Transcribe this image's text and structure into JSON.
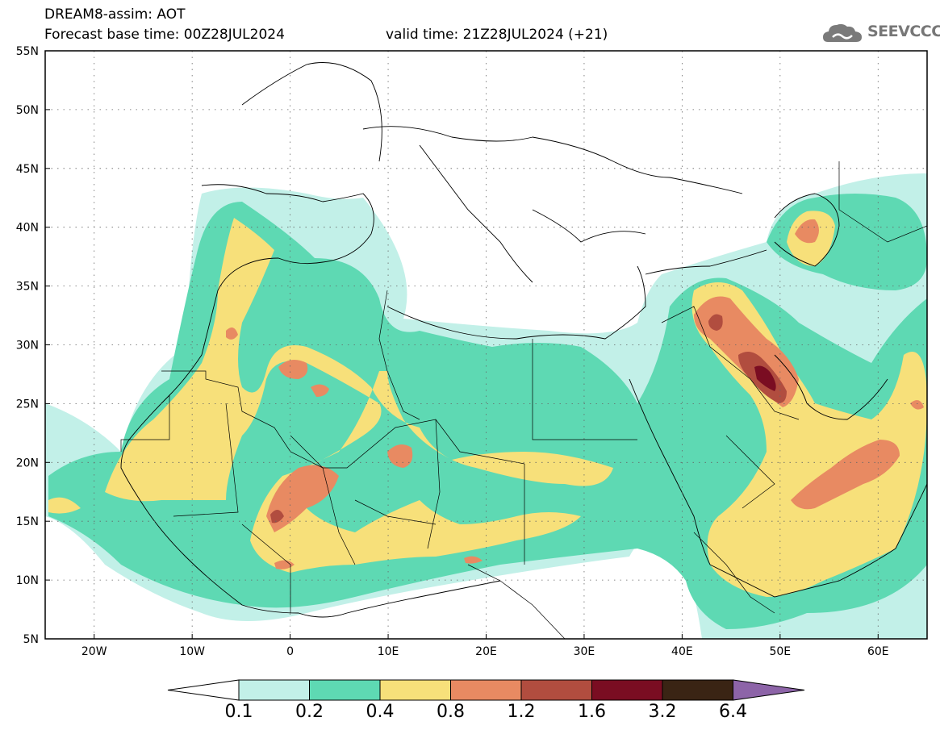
{
  "header": {
    "title_line1": "DREAM8-assim: AOT",
    "title_line2_left": "Forecast base time: 00Z28JUL2024",
    "title_line2_right": "valid time: 21Z28JUL2024 (+21)"
  },
  "logo": {
    "icon": "cloud-icon",
    "text": "SEEVCCC"
  },
  "map": {
    "lon_range": [
      -25,
      65
    ],
    "lat_range": [
      5,
      55
    ],
    "lat_ticks": [
      {
        "value": 55,
        "label": "55N"
      },
      {
        "value": 50,
        "label": "50N"
      },
      {
        "value": 45,
        "label": "45N"
      },
      {
        "value": 40,
        "label": "40N"
      },
      {
        "value": 35,
        "label": "35N"
      },
      {
        "value": 30,
        "label": "30N"
      },
      {
        "value": 25,
        "label": "25N"
      },
      {
        "value": 20,
        "label": "20N"
      },
      {
        "value": 15,
        "label": "15N"
      },
      {
        "value": 10,
        "label": "10N"
      },
      {
        "value": 5,
        "label": "5N"
      }
    ],
    "lon_ticks": [
      {
        "value": -20,
        "label": "20W"
      },
      {
        "value": -10,
        "label": "10W"
      },
      {
        "value": 0,
        "label": "0"
      },
      {
        "value": 10,
        "label": "10E"
      },
      {
        "value": 20,
        "label": "20E"
      },
      {
        "value": 30,
        "label": "30E"
      },
      {
        "value": 40,
        "label": "40E"
      },
      {
        "value": 50,
        "label": "50E"
      },
      {
        "value": 60,
        "label": "60E"
      }
    ],
    "grid": true,
    "colors": {
      "c01": "#c2f0e8",
      "c02": "#5ed9b3",
      "c04": "#f7e07a",
      "c08": "#e88a62",
      "c12": "#b14d3f",
      "c16": "#7a0d22",
      "c32": "#3a2414",
      "c64": "#8d64a8"
    }
  },
  "colorbar": {
    "labels": [
      "0.1",
      "0.2",
      "0.4",
      "0.8",
      "1.2",
      "1.6",
      "3.2",
      "6.4"
    ],
    "colors": [
      "#c2f0e8",
      "#5ed9b3",
      "#f7e07a",
      "#e88a62",
      "#b14d3f",
      "#7a0d22",
      "#3a2414"
    ],
    "over_color": "#8d64a8",
    "under_color": "#ffffff"
  }
}
